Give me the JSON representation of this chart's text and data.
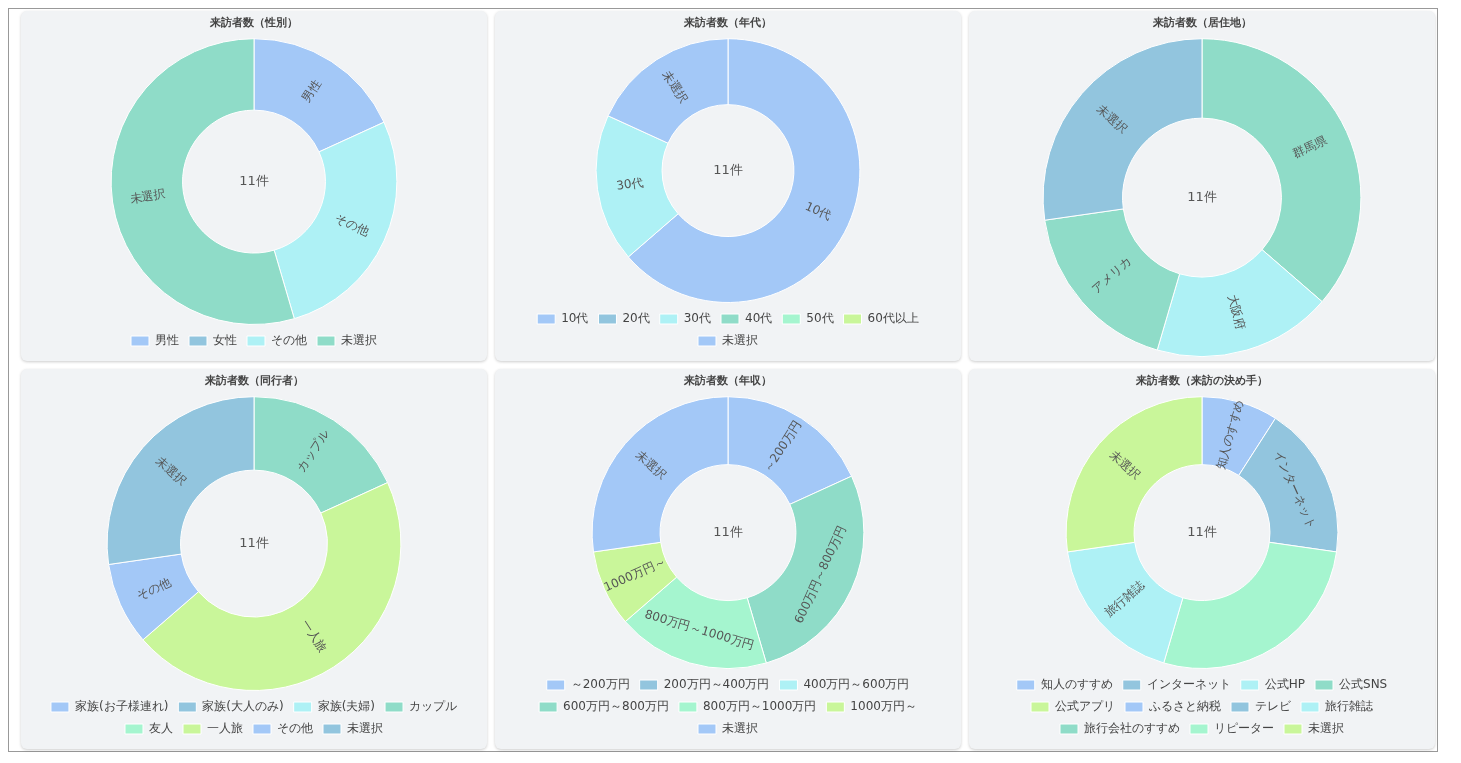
{
  "chart_data": [
    {
      "type": "donut",
      "title": "来訪者数（性別）",
      "categories": [
        "男性",
        "女性",
        "その他",
        "未選択"
      ],
      "values": [
        18.18,
        0,
        27.27,
        54.55
      ],
      "colors": [
        "#a3c8f7",
        "#92c5de",
        "#aef1f5",
        "#8fdcc8"
      ],
      "annotations": [
        "11件"
      ],
      "legend": "bottom"
    },
    {
      "type": "donut",
      "title": "来訪者数（年代）",
      "categories": [
        "10代",
        "20代",
        "30代",
        "40代",
        "50代",
        "60代以上",
        "未選択"
      ],
      "values": [
        63.64,
        0,
        18.18,
        0,
        0,
        0,
        18.18
      ],
      "colors": [
        "#a3c8f7",
        "#92c5de",
        "#aef1f5",
        "#8fdcc8",
        "#a5f5cf",
        "#c9f69a",
        "#a3c8f7"
      ],
      "annotations": [
        "11件"
      ],
      "legend": "bottom"
    },
    {
      "type": "donut",
      "title": "来訪者数（居住地）",
      "categories": [
        "群馬県",
        "大阪府",
        "アメリカ",
        "未選択"
      ],
      "values": [
        36.36,
        18.18,
        18.18,
        27.27
      ],
      "colors": [
        "#8fdcc8",
        "#aef1f5",
        "#8fdcc8",
        "#92c5de"
      ],
      "annotations": [
        "11件"
      ]
    },
    {
      "type": "donut",
      "title": "来訪者数（同行者）",
      "categories": [
        "家族(お子様連れ)",
        "家族(大人のみ)",
        "家族(夫婦)",
        "カップル",
        "友人",
        "一人旅",
        "その他",
        "未選択"
      ],
      "values": [
        0,
        0,
        0,
        18.18,
        0,
        45.45,
        9.09,
        27.27
      ],
      "colors": [
        "#a3c8f7",
        "#92c5de",
        "#aef1f5",
        "#8fdcc8",
        "#a5f5cf",
        "#c9f69a",
        "#a3c8f7",
        "#92c5de"
      ],
      "annotations": [
        "11件"
      ],
      "legend": "bottom"
    },
    {
      "type": "donut",
      "title": "来訪者数（年収）",
      "categories": [
        "～200万円",
        "200万円～400万円",
        "400万円～600万円",
        "600万円～800万円",
        "800万円～1000万円",
        "1000万円～",
        "未選択"
      ],
      "values": [
        18.18,
        0,
        0,
        27.27,
        18.18,
        9.09,
        27.27
      ],
      "colors": [
        "#a3c8f7",
        "#92c5de",
        "#aef1f5",
        "#8fdcc8",
        "#a5f5cf",
        "#c9f69a",
        "#a3c8f7"
      ],
      "annotations": [
        "11件"
      ],
      "legend": "bottom"
    },
    {
      "type": "donut",
      "title": "来訪者数（来訪の決め手）",
      "categories": [
        "知人のすすめ",
        "インターネット",
        "公式HP",
        "公式SNS",
        null,
        "公式アプリ",
        "ふるさと納税",
        "テレビ",
        "旅行雑誌",
        "旅行会社のすすめ",
        "リピーター",
        "未選択"
      ],
      "values": [
        9.09,
        18.18,
        0,
        0,
        27.27,
        0,
        0,
        0,
        18.18,
        0,
        0,
        27.27
      ],
      "colors": [
        "#a3c8f7",
        "#92c5de",
        "#aef1f5",
        "#8fdcc8",
        "#a5f5cf",
        "#c9f69a",
        "#a3c8f7",
        "#92c5de",
        "#aef1f5",
        "#8fdcc8",
        "#a5f5cf",
        "#c9f69a"
      ],
      "annotations": [
        "11件"
      ],
      "legend": "bottom"
    }
  ]
}
